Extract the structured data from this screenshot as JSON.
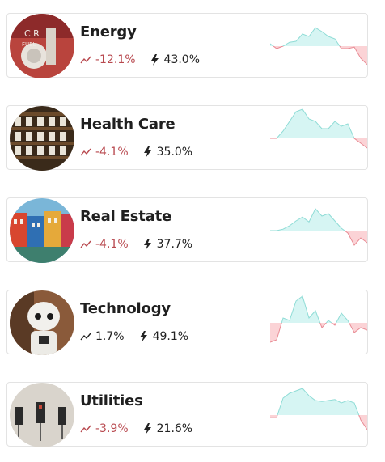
{
  "sectors": [
    {
      "name": "Energy",
      "change": "-12.1%",
      "direction": "down",
      "volatility": "43.0%",
      "spark": [
        0.05,
        -0.05,
        0.0,
        0.08,
        0.1,
        0.25,
        0.2,
        0.38,
        0.3,
        0.2,
        0.15,
        -0.05,
        -0.05,
        -0.02,
        -0.25,
        -0.38
      ]
    },
    {
      "name": "Health Care",
      "change": "-4.1%",
      "direction": "down",
      "volatility": "35.0%",
      "spark": [
        0.0,
        0.0,
        0.15,
        0.35,
        0.55,
        0.6,
        0.4,
        0.35,
        0.2,
        0.2,
        0.35,
        0.25,
        0.3,
        0.0,
        -0.1,
        -0.2
      ]
    },
    {
      "name": "Real Estate",
      "change": "-4.1%",
      "direction": "down",
      "volatility": "37.7%",
      "spark": [
        0.0,
        0.0,
        0.03,
        0.1,
        0.2,
        0.28,
        0.18,
        0.45,
        0.3,
        0.35,
        0.2,
        0.05,
        -0.05,
        -0.3,
        -0.15,
        -0.25
      ]
    },
    {
      "name": "Technology",
      "change": "1.7%",
      "direction": "up",
      "volatility": "49.1%",
      "spark": [
        -0.4,
        -0.35,
        0.1,
        0.05,
        0.45,
        0.55,
        0.1,
        0.25,
        -0.1,
        0.05,
        -0.05,
        0.2,
        0.05,
        -0.2,
        -0.1,
        -0.15
      ]
    },
    {
      "name": "Utilities",
      "change": "-3.9%",
      "direction": "down",
      "volatility": "21.6%",
      "spark": [
        -0.05,
        -0.05,
        0.35,
        0.45,
        0.5,
        0.55,
        0.4,
        0.3,
        0.28,
        0.3,
        0.32,
        0.25,
        0.3,
        0.25,
        -0.1,
        -0.3
      ]
    }
  ],
  "colors": {
    "negative_text": "#b8484e",
    "positive_fill": "#d6f5f3",
    "positive_line": "#8fdcd6",
    "negative_fill": "#fbd3d6",
    "negative_line": "#e88b94"
  }
}
